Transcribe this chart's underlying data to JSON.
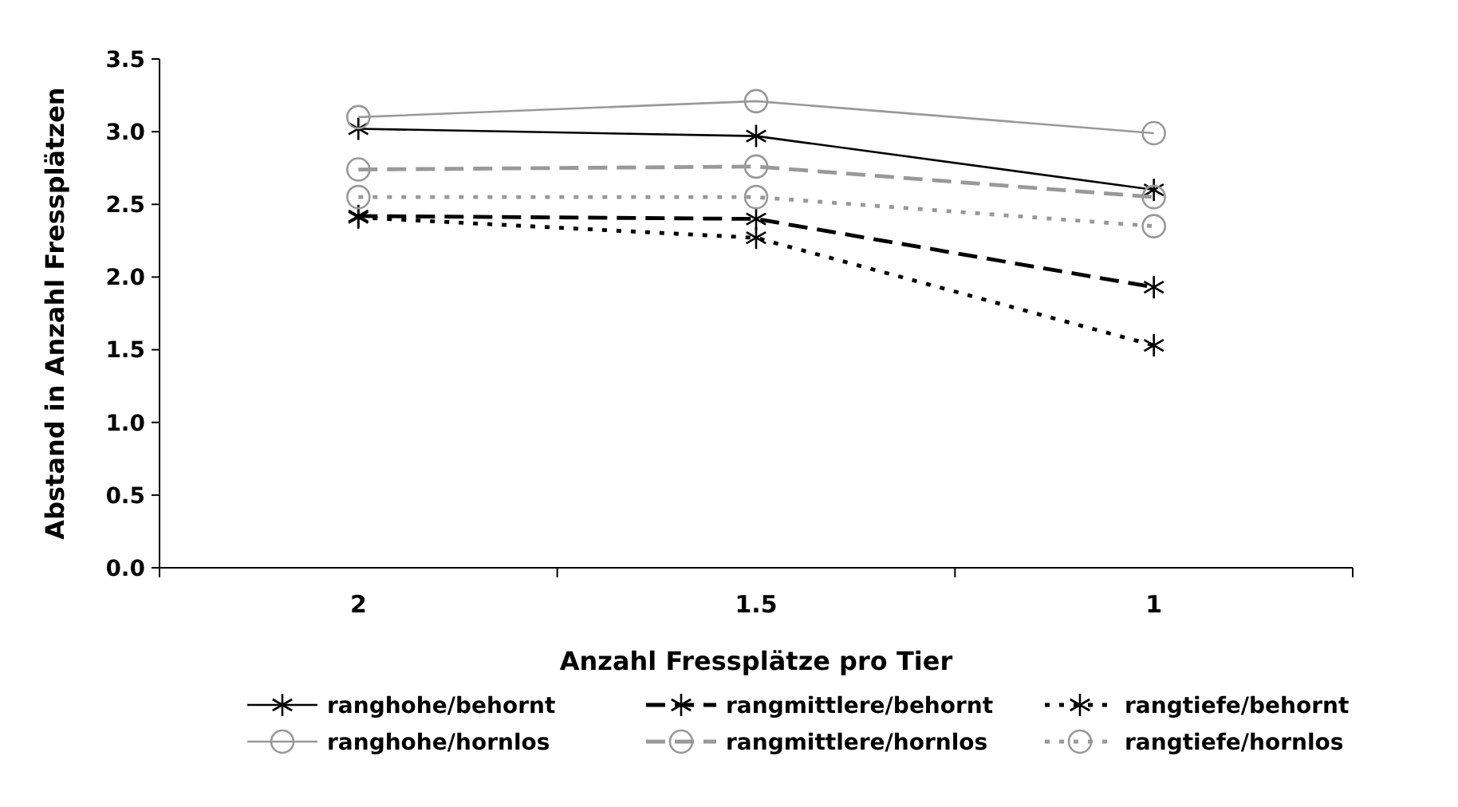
{
  "chart_data": {
    "type": "line",
    "xlabel": "Anzahl Fressplätze pro Tier",
    "ylabel": "Abstand in Anzahl Fressplätzen",
    "categories": [
      "2",
      "1.5",
      "1"
    ],
    "ylim": [
      0,
      3.5
    ],
    "yticks": [
      {
        "value": 0,
        "label": "0.0"
      },
      {
        "value": 0.5,
        "label": "0.5"
      },
      {
        "value": 1,
        "label": "1.0"
      },
      {
        "value": 1.5,
        "label": "1.5"
      },
      {
        "value": 2,
        "label": "2.0"
      },
      {
        "value": 2.5,
        "label": "2.5"
      },
      {
        "value": 3,
        "label": "3.0"
      },
      {
        "value": 3.5,
        "label": "3.5"
      }
    ],
    "grid": false,
    "legend": "bottom",
    "series": [
      {
        "name": "ranghohe/behornt",
        "color": "#000000",
        "marker": "cross",
        "line_style": "solid",
        "values": [
          3.02,
          2.97,
          2.6
        ]
      },
      {
        "name": "rangmittlere/behornt",
        "color": "#000000",
        "marker": "cross",
        "line_style": "dashed",
        "values": [
          2.42,
          2.4,
          1.93
        ]
      },
      {
        "name": "rangtiefe/behornt",
        "color": "#000000",
        "marker": "cross",
        "line_style": "dotted",
        "values": [
          2.41,
          2.27,
          1.53
        ]
      },
      {
        "name": "ranghohe/hornlos",
        "color": "#999999",
        "marker": "circle",
        "line_style": "solid",
        "values": [
          3.1,
          3.21,
          2.99
        ]
      },
      {
        "name": "rangmittlere/hornlos",
        "color": "#999999",
        "marker": "circle",
        "line_style": "dashed",
        "values": [
          2.74,
          2.76,
          2.55
        ]
      },
      {
        "name": "rangtiefe/hornlos",
        "color": "#999999",
        "marker": "circle",
        "line_style": "dotted",
        "values": [
          2.55,
          2.55,
          2.35
        ]
      }
    ]
  }
}
